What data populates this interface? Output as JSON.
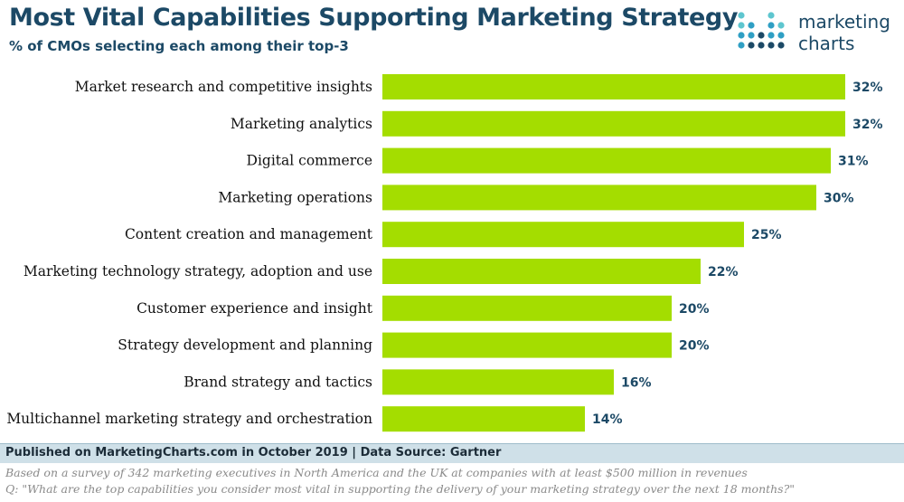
{
  "header": {
    "title": "Most Vital Capabilities Supporting Marketing Strategy",
    "subtitle": "% of CMOs selecting each among their top-3"
  },
  "logo": {
    "line1": "marketing",
    "line2": "charts",
    "colors": [
      "#5ec6cf",
      "#2f9fc4",
      "#1c4966"
    ]
  },
  "chart_data": {
    "type": "bar",
    "orientation": "horizontal",
    "categories": [
      "Market research and competitive insights",
      "Marketing analytics",
      "Digital commerce",
      "Marketing operations",
      "Content creation and management",
      "Marketing technology strategy, adoption and use",
      "Customer experience and insight",
      "Strategy development and planning",
      "Brand strategy and tactics",
      "Multichannel marketing strategy and orchestration"
    ],
    "values": [
      32,
      32,
      31,
      30,
      25,
      22,
      20,
      20,
      16,
      14
    ],
    "value_labels": [
      "32%",
      "32%",
      "31%",
      "30%",
      "25%",
      "22%",
      "20%",
      "20%",
      "16%",
      "14%"
    ],
    "bar_color": "#a4dd00",
    "xlim": [
      0,
      32.5
    ],
    "grid": false,
    "title": "Most Vital Capabilities Supporting Marketing Strategy"
  },
  "footer": {
    "published": "Published on MarketingCharts.com in October 2019 | Data Source: Gartner",
    "note1": "Based on a survey of 342 marketing executives in North America and the UK at companies with at least $500 million in revenues",
    "note2": "Q: \"What are the top capabilities you consider most vital in supporting the delivery of your marketing strategy over the next 18 months?\""
  }
}
